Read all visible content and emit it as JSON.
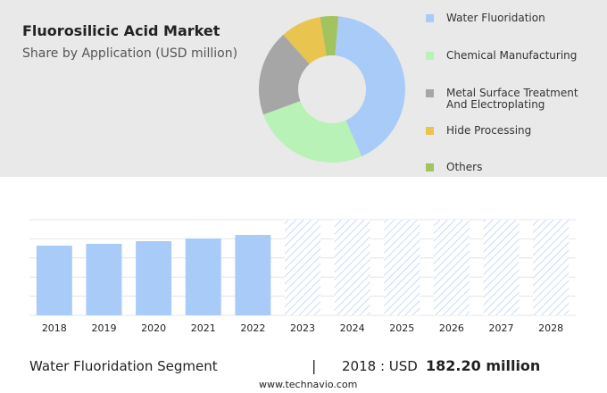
{
  "chart_data": [
    {
      "type": "pie",
      "title": "Fluorosilicic Acid Market",
      "subtitle": "Share by Application (USD million)",
      "categories": [
        "Water Fluoridation",
        "Chemical Manufacturing",
        "Metal Surface Treatment And Electroplating",
        "Hide Processing",
        "Others"
      ],
      "values": [
        42,
        26,
        19,
        9,
        4
      ],
      "colors": [
        "#a9cbf8",
        "#b8f2b6",
        "#a6a6a6",
        "#e9c44e",
        "#a2c35e"
      ]
    },
    {
      "type": "bar",
      "categories": [
        "2018",
        "2019",
        "2020",
        "2021",
        "2022",
        "2023",
        "2024",
        "2025",
        "2026",
        "2027",
        "2028"
      ],
      "values": [
        182.2,
        186.9,
        193.9,
        200.9,
        210.2,
        null,
        null,
        null,
        null,
        null,
        null
      ],
      "color": "#a9cbf8",
      "forecast_color": "#c9dbf6",
      "ylim": [
        0,
        250
      ],
      "segment": "Water Fluoridation Segment",
      "year_text": "2018 : USD",
      "value_text": "182.20 million",
      "source": "www.technavio.com"
    }
  ]
}
